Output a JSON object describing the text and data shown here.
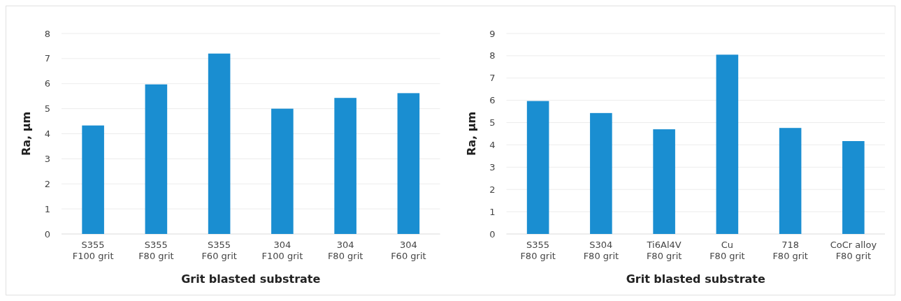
{
  "chart_data": [
    {
      "type": "bar",
      "xlabel": "Grit blasted substrate",
      "ylabel": "Ra, µm",
      "categories": [
        "S355\nF100 grit",
        "S355\nF80 grit",
        "S355\nF60 grit",
        "304\nF100 grit",
        "304\nF80 grit",
        "304\nF60 grit"
      ],
      "values": [
        4.33,
        5.97,
        7.2,
        5.0,
        5.43,
        5.62
      ],
      "color": "#1a8ed1",
      "ylim": [
        0,
        8
      ],
      "yticks": [
        0,
        1,
        2,
        3,
        4,
        5,
        6,
        7,
        8
      ],
      "grid": "y"
    },
    {
      "type": "bar",
      "xlabel": "Grit blasted substrate",
      "ylabel": "Ra, µm",
      "categories": [
        "S355\nF80 grit",
        "S304\nF80 grit",
        "Ti6Al4V\nF80 grit",
        "Cu\nF80 grit",
        "718\nF80 grit",
        "CoCr alloy\nF80 grit"
      ],
      "values": [
        5.97,
        5.43,
        4.7,
        8.05,
        4.76,
        4.17
      ],
      "color": "#1a8ed1",
      "ylim": [
        0,
        9
      ],
      "yticks": [
        0,
        1,
        2,
        3,
        4,
        5,
        6,
        7,
        8,
        9
      ],
      "grid": "y"
    }
  ]
}
